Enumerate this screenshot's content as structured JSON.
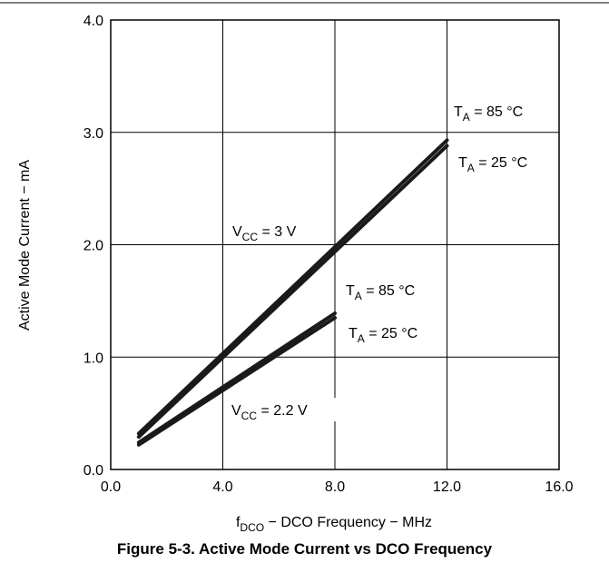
{
  "chart_data": {
    "type": "line",
    "title": "",
    "xlabel": {
      "main": "f",
      "sub": "DCO",
      "rest": " − DCO Frequency − MHz"
    },
    "ylabel": "Active Mode Current − mA",
    "xlim": [
      0,
      16
    ],
    "ylim": [
      0,
      4
    ],
    "x_ticks": [
      0,
      4,
      8,
      12,
      16
    ],
    "y_ticks": [
      0,
      1,
      2,
      3,
      4
    ],
    "x_tick_labels": [
      "0.0",
      "4.0",
      "8.0",
      "12.0",
      "16.0"
    ],
    "y_tick_labels": [
      "0.0",
      "1.0",
      "2.0",
      "3.0",
      "4.0"
    ],
    "grid": true,
    "series": [
      {
        "x": [
          1,
          12
        ],
        "y": [
          0.32,
          2.93
        ]
      },
      {
        "x": [
          1,
          12
        ],
        "y": [
          0.29,
          2.88
        ]
      },
      {
        "x": [
          1,
          8
        ],
        "y": [
          0.24,
          1.39
        ]
      },
      {
        "x": [
          1,
          8
        ],
        "y": [
          0.22,
          1.35
        ]
      }
    ],
    "annotations": [
      {
        "id": "ta85-3v",
        "main": "T",
        "sub": "A",
        "rest": " = 85 °C"
      },
      {
        "id": "ta25-3v",
        "main": "T",
        "sub": "A",
        "rest": " = 25 °C"
      },
      {
        "id": "vcc-3v",
        "main": "V",
        "sub": "CC",
        "rest": " = 3 V"
      },
      {
        "id": "ta85-22v",
        "main": "T",
        "sub": "A",
        "rest": " = 85 °C"
      },
      {
        "id": "ta25-22v",
        "main": "T",
        "sub": "A",
        "rest": " = 25 °C"
      },
      {
        "id": "vcc-22v",
        "main": "V",
        "sub": "CC",
        "rest": " = 2.2 V"
      }
    ]
  },
  "caption": "Figure 5-3. Active Mode Current vs DCO Frequency",
  "colors": {
    "line": "#1a1a1a",
    "grid": "#000000"
  }
}
